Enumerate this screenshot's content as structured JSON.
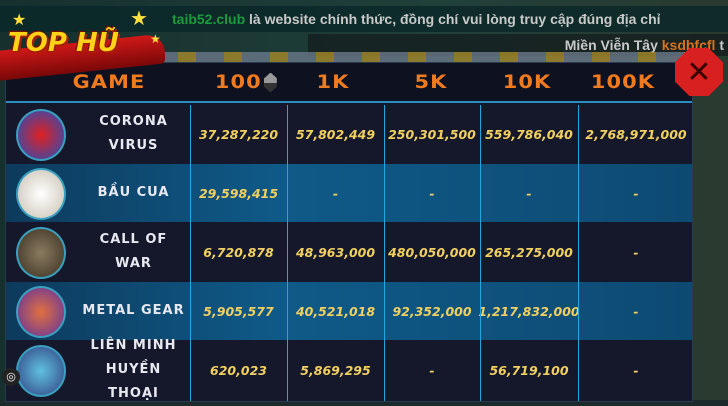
{
  "notice": {
    "site": "taib52.club",
    "text": " là website chính thức, đồng chí vui lòng truy cập đúng địa chỉ"
  },
  "ticker": {
    "place": "Miền Viễn Tây ",
    "user": "ksdbfcfl",
    "tail": " t"
  },
  "title": "TOP HŨ",
  "close_label": "✕",
  "columns": [
    "GAME",
    "100",
    "1K",
    "5K",
    "10K",
    "100K"
  ],
  "sorted_column": "100",
  "rows": [
    {
      "name": "CORONA VIRUS",
      "icon": "corona-virus-game-icon",
      "values": [
        "37,287,220",
        "57,802,449",
        "250,301,500",
        "559,786,040",
        "2,768,971,000"
      ]
    },
    {
      "name": "BẦU CUA",
      "icon": "bau-cua-game-icon",
      "values": [
        "29,598,415",
        "-",
        "-",
        "-",
        "-"
      ]
    },
    {
      "name": "CALL OF WAR",
      "icon": "call-of-war-game-icon",
      "values": [
        "6,720,878",
        "48,963,000",
        "480,050,000",
        "265,275,000",
        "-"
      ]
    },
    {
      "name": "METAL GEAR",
      "icon": "metal-gear-game-icon",
      "values": [
        "5,905,577",
        "40,521,018",
        "92,352,000",
        "1,217,832,000",
        "-"
      ]
    },
    {
      "name": "LIÊN MINH HUYỀN THOẠI",
      "icon": "lien-minh-game-icon",
      "values": [
        "620,023",
        "5,869,295",
        "-",
        "56,719,100",
        "-"
      ]
    }
  ],
  "colors": {
    "header_text": "#f07a1e",
    "value_text": "#f2d060",
    "row_alt": "#0f5a88",
    "divider": "#1fa8e0"
  }
}
